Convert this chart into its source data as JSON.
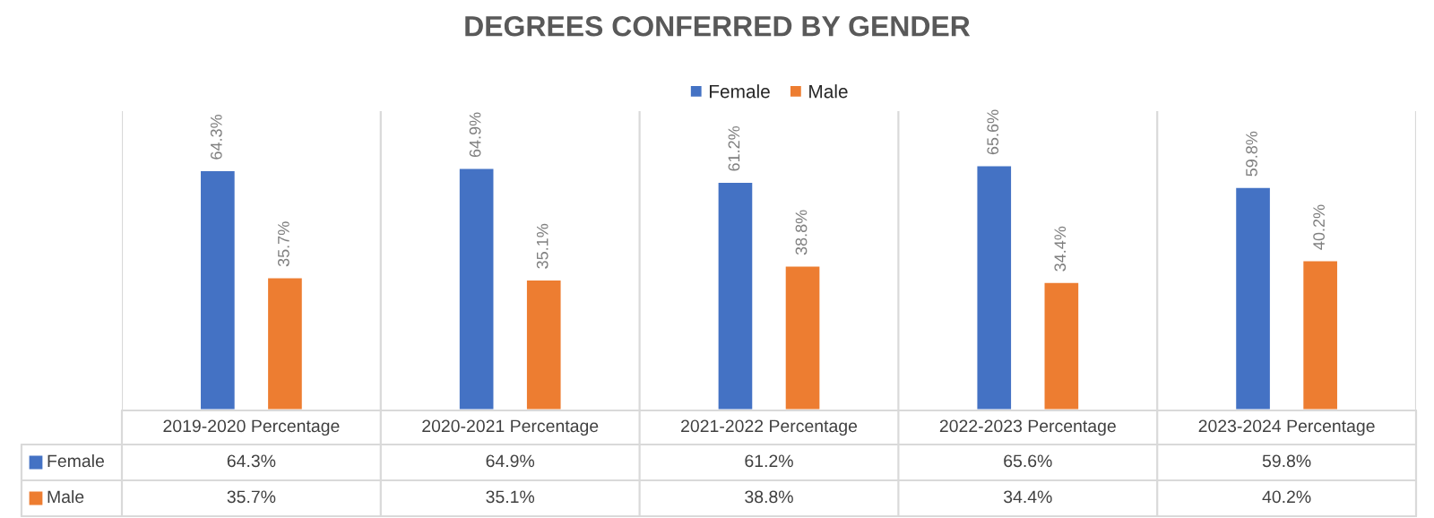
{
  "chart_data": {
    "type": "bar",
    "title": "DEGREES CONFERRED BY GENDER",
    "categories": [
      "2019-2020 Percentage",
      "2020-2021 Percentage",
      "2021-2022 Percentage",
      "2022-2023 Percentage",
      "2023-2024 Percentage"
    ],
    "series": [
      {
        "name": "Female",
        "color": "#4472c4",
        "values": [
          64.3,
          64.9,
          61.2,
          65.6,
          59.8
        ],
        "value_labels": [
          "64.3%",
          "64.9%",
          "61.2%",
          "65.6%",
          "59.8%"
        ]
      },
      {
        "name": "Male",
        "color": "#ed7d31",
        "values": [
          35.7,
          35.1,
          38.8,
          34.4,
          40.2
        ],
        "value_labels": [
          "35.7%",
          "35.1%",
          "38.8%",
          "34.4%",
          "40.2%"
        ]
      }
    ],
    "legend": "top"
  }
}
